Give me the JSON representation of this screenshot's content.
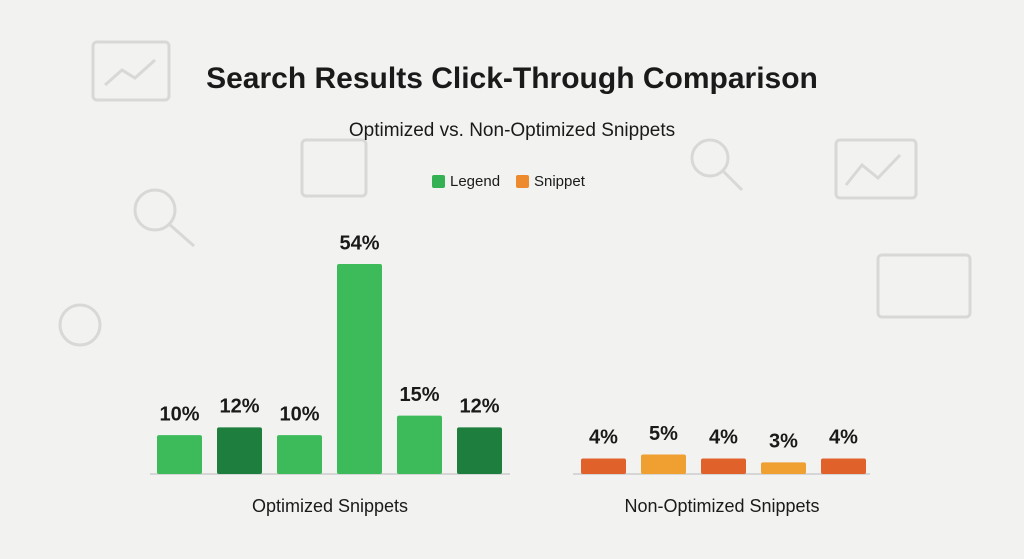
{
  "chart_data": {
    "type": "bar",
    "title": "Search Results Click-Through Comparison",
    "subtitle": "Optimized vs. Non-Optimized Snippets",
    "groups": [
      "Optimized Snippets",
      "Non-Optimized Snippets"
    ],
    "series": [
      {
        "name": "Legend",
        "color": "#35b155",
        "colors": [
          "#3dbb5b",
          "#1e7e3e",
          "#3dbb5b",
          "#3dbb5b",
          "#3dbb5b",
          "#1e7e3e"
        ],
        "values": [
          10,
          12,
          10,
          54,
          15,
          12
        ],
        "value_labels": [
          "10%",
          "12%",
          "10%",
          "54%",
          "15%",
          "12%"
        ]
      },
      {
        "name": "Snippet",
        "color": "#ee8a2e",
        "colors": [
          "#e0612a",
          "#f0a030",
          "#e0612a",
          "#f0a030",
          "#e0612a"
        ],
        "values": [
          4,
          5,
          4,
          3,
          4
        ],
        "value_labels": [
          "4%",
          "5%",
          "4%",
          "3%",
          "4%"
        ]
      }
    ]
  }
}
